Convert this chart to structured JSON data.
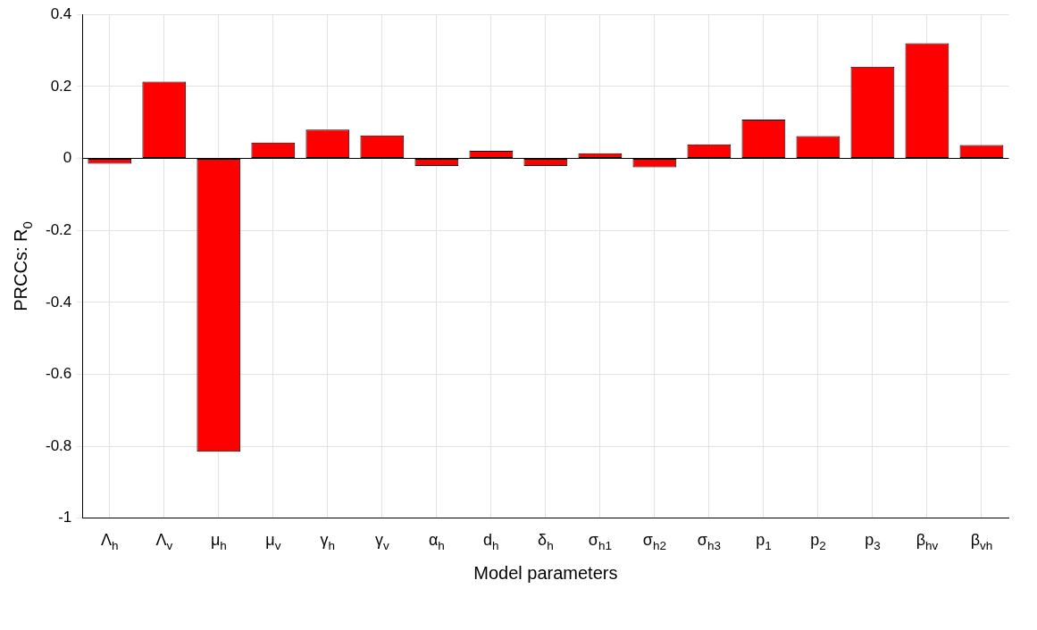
{
  "chart_data": {
    "type": "bar",
    "xlabel": "Model parameters",
    "ylabel": "PRCCs: R$_{0}$",
    "categories": [
      "Λ$_{h}$",
      "Λ$_{v}$",
      "μ$_{h}$",
      "μ$_{v}$",
      "γ$_{h}$",
      "γ$_{v}$",
      "α$_{h}$",
      "d$_{h}$",
      "δ$_{h}$",
      "σ$_{h1}$",
      "σ$_{h2}$",
      "σ$_{h3}$",
      "p$_{1}$",
      "p$_{2}$",
      "p$_{3}$",
      "β$_{hv}$",
      "β$_{vh}$"
    ],
    "values": [
      -0.015,
      0.213,
      -0.815,
      0.044,
      0.08,
      0.064,
      -0.021,
      0.021,
      -0.021,
      0.014,
      -0.025,
      0.039,
      0.108,
      0.062,
      0.255,
      0.32,
      0.037
    ],
    "color": "#ff0000",
    "ylim": [
      -1,
      0.4
    ],
    "yticks": [
      -1,
      -0.8,
      -0.6,
      -0.4,
      -0.2,
      0,
      0.2,
      0.4
    ],
    "grid": true
  }
}
